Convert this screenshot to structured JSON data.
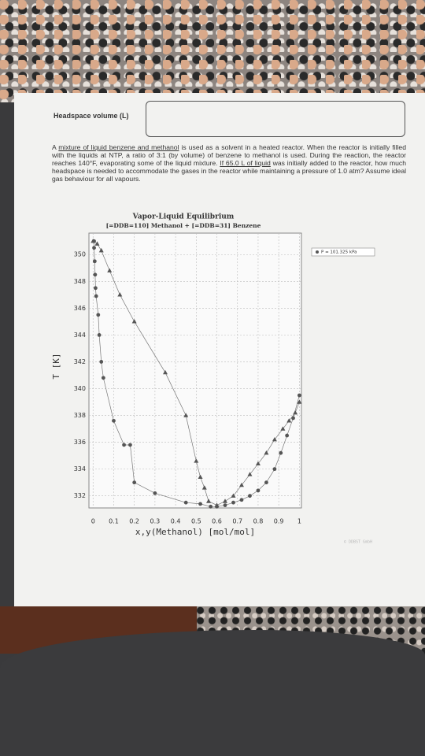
{
  "header": {
    "label": "Headspace volume (L)"
  },
  "paragraph": [
    "A ",
    "mixture of liquid benzene and methanol",
    " is used as a solvent in a heated reactor. When the reactor is initially filled with the liquids at NTP, a ratio of 3:1 (by volume) of benzene to methanol is used. During the reaction, the reactor reaches 140°F, evaporating some of the liquid mixture. ",
    "If 65.0 L of liquid",
    " was initially added to the reactor, how much headspace is needed to accommodate the gases in the reactor while maintaining a pressure of 1.0 atm? Assume ideal gas behaviour for all vapours."
  ],
  "chart_data": {
    "type": "scatter",
    "title": "Vapor-Liquid Equilibrium",
    "subtitle": "[=DDB=110] Methanol + [=DDB=31] Benzene",
    "xlabel": "x,y(Methanol) [mol/mol]",
    "ylabel": "T [K]",
    "watermark": "© DDBST GmbH",
    "xlim": [
      -0.02,
      1.01
    ],
    "ylim": [
      331.1,
      351.6
    ],
    "xticks": [
      0,
      0.1,
      0.2,
      0.3,
      0.4,
      0.5,
      0.6,
      0.7,
      0.8,
      0.9,
      1
    ],
    "yticks": [
      332,
      334,
      336,
      338,
      340,
      342,
      344,
      346,
      348,
      350
    ],
    "grid": true,
    "legend": "right",
    "series": [
      {
        "name": "P = 101.325 kPa",
        "color": "#555555",
        "marker": "circle",
        "x": [
          0.005,
          0.005,
          0.008,
          0.01,
          0.012,
          0.015,
          0.025,
          0.03,
          0.04,
          0.05,
          0.1,
          0.15,
          0.18,
          0.2,
          0.3,
          0.45,
          0.52,
          0.57,
          0.6,
          0.64,
          0.68,
          0.72,
          0.76,
          0.8,
          0.84,
          0.88,
          0.91,
          0.94,
          0.97,
          1.0
        ],
        "values": [
          351.0,
          350.5,
          349.5,
          348.5,
          347.5,
          346.9,
          345.5,
          344,
          342,
          340.8,
          337.6,
          335.8,
          335.8,
          333,
          332.2,
          331.5,
          331.4,
          331.2,
          331.2,
          331.3,
          331.5,
          331.7,
          332.0,
          332.4,
          333.0,
          334.0,
          335.2,
          336.5,
          337.8,
          339.5
        ]
      },
      {
        "color": "#555555",
        "marker": "triangle",
        "x": [
          0.0,
          0.02,
          0.04,
          0.08,
          0.13,
          0.2,
          0.35,
          0.45,
          0.5,
          0.52,
          0.54,
          0.56,
          0.6,
          0.64,
          0.68,
          0.72,
          0.76,
          0.8,
          0.84,
          0.88,
          0.92,
          0.95,
          0.98,
          1.0
        ],
        "values": [
          351.0,
          350.8,
          350.3,
          348.8,
          347.0,
          345.0,
          341.2,
          338.0,
          334.6,
          333.4,
          332.6,
          331.6,
          331.3,
          331.6,
          332.0,
          332.8,
          333.6,
          334.4,
          335.2,
          336.2,
          337.0,
          337.6,
          338.2,
          339.0
        ]
      }
    ]
  }
}
